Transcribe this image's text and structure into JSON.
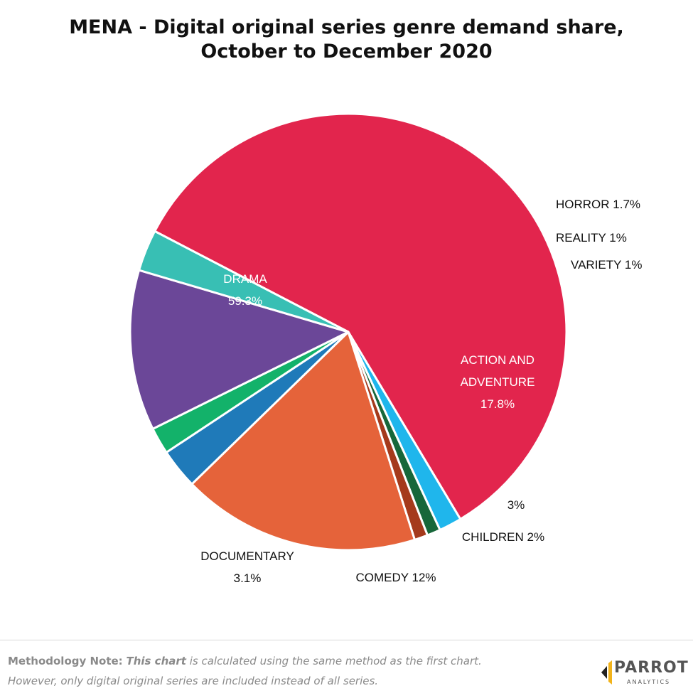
{
  "title_line1": "MENA - Digital original series genre demand share,",
  "title_line2": "October to December 2020",
  "chart_data": {
    "type": "pie",
    "title": "MENA - Digital original series genre demand share, October to December 2020",
    "unit": "%",
    "slices": [
      {
        "name": "DRAMA",
        "value": 59.3,
        "label": "59.3%",
        "color": "#e2254d"
      },
      {
        "name": "HORROR",
        "value": 1.7,
        "label": "1.7%",
        "color": "#1fb6ec"
      },
      {
        "name": "REALITY",
        "value": 1,
        "label": "1%",
        "color": "#17673a"
      },
      {
        "name": "VARIETY",
        "value": 1,
        "label": "1%",
        "color": "#a53a1c"
      },
      {
        "name": "ACTION AND ADVENTURE",
        "value": 17.8,
        "label": "17.8%",
        "color": "#e5633a"
      },
      {
        "name": "",
        "value": 3,
        "label": "3%",
        "color": "#1f7ab9"
      },
      {
        "name": "CHILDREN",
        "value": 2,
        "label": "2%",
        "color": "#13b26a"
      },
      {
        "name": "COMEDY",
        "value": 12,
        "label": "12%",
        "color": "#6b4798"
      },
      {
        "name": "DOCUMENTARY",
        "value": 3.1,
        "label": "3.1%",
        "color": "#38bfb4"
      }
    ]
  },
  "footer": {
    "note_label": "Methodology Note:",
    "note_emph": "This chart",
    "note_rest": " is calculated using the same method as the first chart.",
    "note_line2": "However, only digital original series are included instead of all series."
  },
  "logo": {
    "name": "PARROT",
    "sub": "ANALYTICS"
  }
}
